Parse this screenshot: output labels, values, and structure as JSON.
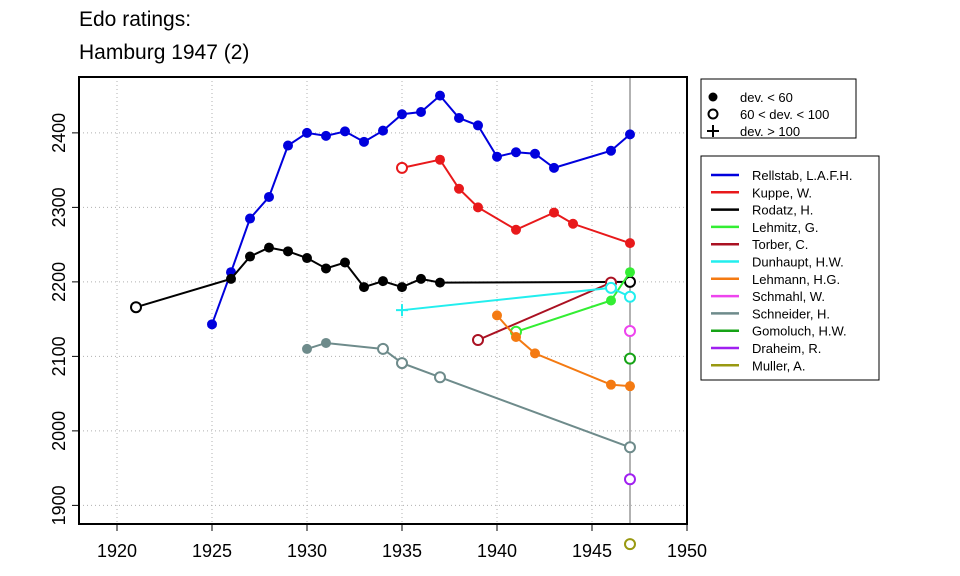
{
  "chart_data": {
    "type": "line",
    "title_lines": [
      "Edo ratings:",
      "Hamburg 1947 (2)"
    ],
    "xlabel": "",
    "ylabel": "",
    "xlim": [
      1918,
      1950
    ],
    "ylim": [
      1875,
      2475
    ],
    "x_ticks": [
      1920,
      1925,
      1930,
      1935,
      1940,
      1945,
      1950
    ],
    "y_ticks": [
      1900,
      2000,
      2100,
      2200,
      2300,
      2400
    ],
    "grid": "dotted",
    "event_year": 1947,
    "legend_markers": {
      "placement": "top-right",
      "entries": [
        {
          "marker": "filled-circle",
          "label": "dev. < 60"
        },
        {
          "marker": "open-circle",
          "label": "60 < dev. < 100"
        },
        {
          "marker": "plus",
          "label": "dev. > 100"
        }
      ]
    },
    "series": [
      {
        "name": "Rellstab, L.A.F.H.",
        "color": "#0000dd",
        "points": [
          {
            "x": 1925,
            "y": 2143,
            "m": "f"
          },
          {
            "x": 1926,
            "y": 2213,
            "m": "f"
          },
          {
            "x": 1927,
            "y": 2285,
            "m": "f"
          },
          {
            "x": 1928,
            "y": 2314,
            "m": "f"
          },
          {
            "x": 1929,
            "y": 2383,
            "m": "f"
          },
          {
            "x": 1930,
            "y": 2400,
            "m": "f"
          },
          {
            "x": 1931,
            "y": 2396,
            "m": "f"
          },
          {
            "x": 1932,
            "y": 2402,
            "m": "f"
          },
          {
            "x": 1933,
            "y": 2388,
            "m": "f"
          },
          {
            "x": 1934,
            "y": 2403,
            "m": "f"
          },
          {
            "x": 1935,
            "y": 2425,
            "m": "f"
          },
          {
            "x": 1936,
            "y": 2428,
            "m": "f"
          },
          {
            "x": 1937,
            "y": 2450,
            "m": "f"
          },
          {
            "x": 1938,
            "y": 2420,
            "m": "f"
          },
          {
            "x": 1939,
            "y": 2410,
            "m": "f"
          },
          {
            "x": 1940,
            "y": 2368,
            "m": "f"
          },
          {
            "x": 1941,
            "y": 2374,
            "m": "f"
          },
          {
            "x": 1942,
            "y": 2372,
            "m": "f"
          },
          {
            "x": 1943,
            "y": 2353,
            "m": "f"
          },
          {
            "x": 1946,
            "y": 2376,
            "m": "f"
          },
          {
            "x": 1947,
            "y": 2398,
            "m": "f"
          }
        ]
      },
      {
        "name": "Kuppe, W.",
        "color": "#e8191b",
        "points": [
          {
            "x": 1935,
            "y": 2353,
            "m": "o"
          },
          {
            "x": 1937,
            "y": 2364,
            "m": "f"
          },
          {
            "x": 1938,
            "y": 2325,
            "m": "f"
          },
          {
            "x": 1939,
            "y": 2300,
            "m": "f"
          },
          {
            "x": 1941,
            "y": 2270,
            "m": "f"
          },
          {
            "x": 1943,
            "y": 2293,
            "m": "f"
          },
          {
            "x": 1944,
            "y": 2278,
            "m": "f"
          },
          {
            "x": 1947,
            "y": 2252,
            "m": "f"
          }
        ]
      },
      {
        "name": "Rodatz, H.",
        "color": "#000000",
        "points": [
          {
            "x": 1921,
            "y": 2166,
            "m": "o"
          },
          {
            "x": 1926,
            "y": 2204,
            "m": "f"
          },
          {
            "x": 1927,
            "y": 2234,
            "m": "f"
          },
          {
            "x": 1928,
            "y": 2246,
            "m": "f"
          },
          {
            "x": 1929,
            "y": 2241,
            "m": "f"
          },
          {
            "x": 1930,
            "y": 2232,
            "m": "f"
          },
          {
            "x": 1931,
            "y": 2218,
            "m": "f"
          },
          {
            "x": 1932,
            "y": 2226,
            "m": "f"
          },
          {
            "x": 1933,
            "y": 2193,
            "m": "f"
          },
          {
            "x": 1934,
            "y": 2201,
            "m": "f"
          },
          {
            "x": 1935,
            "y": 2193,
            "m": "f"
          },
          {
            "x": 1936,
            "y": 2204,
            "m": "f"
          },
          {
            "x": 1937,
            "y": 2199,
            "m": "f"
          },
          {
            "x": 1947,
            "y": 2200,
            "m": "o"
          }
        ]
      },
      {
        "name": "Lehmitz, G.",
        "color": "#33ee33",
        "points": [
          {
            "x": 1941,
            "y": 2133,
            "m": "o"
          },
          {
            "x": 1946,
            "y": 2175,
            "m": "f"
          },
          {
            "x": 1947,
            "y": 2213,
            "m": "f"
          }
        ]
      },
      {
        "name": "Torber, C.",
        "color": "#aa1122",
        "points": [
          {
            "x": 1939,
            "y": 2122,
            "m": "o"
          },
          {
            "x": 1946,
            "y": 2199,
            "m": "o"
          }
        ]
      },
      {
        "name": "Dunhaupt, H.W.",
        "color": "#22eeee",
        "points": [
          {
            "x": 1935,
            "y": 2162,
            "m": "p"
          },
          {
            "x": 1946,
            "y": 2192,
            "m": "o"
          },
          {
            "x": 1947,
            "y": 2180,
            "m": "o"
          }
        ]
      },
      {
        "name": "Lehmann, H.G.",
        "color": "#f47a12",
        "points": [
          {
            "x": 1940,
            "y": 2155,
            "m": "f"
          },
          {
            "x": 1941,
            "y": 2126,
            "m": "f"
          },
          {
            "x": 1942,
            "y": 2104,
            "m": "f"
          },
          {
            "x": 1946,
            "y": 2062,
            "m": "f"
          },
          {
            "x": 1947,
            "y": 2060,
            "m": "f"
          }
        ]
      },
      {
        "name": "Schmahl, W.",
        "color": "#ee44ee",
        "points": [
          {
            "x": 1947,
            "y": 2134,
            "m": "o"
          }
        ]
      },
      {
        "name": "Schneider, H.",
        "color": "#6e8b8b",
        "points": [
          {
            "x": 1930,
            "y": 2110,
            "m": "f"
          },
          {
            "x": 1931,
            "y": 2118,
            "m": "f"
          },
          {
            "x": 1934,
            "y": 2110,
            "m": "o"
          },
          {
            "x": 1935,
            "y": 2091,
            "m": "o"
          },
          {
            "x": 1937,
            "y": 2072,
            "m": "o"
          },
          {
            "x": 1947,
            "y": 1978,
            "m": "o"
          }
        ]
      },
      {
        "name": "Gomoluch, H.W.",
        "color": "#16a316",
        "points": [
          {
            "x": 1947,
            "y": 2097,
            "m": "o"
          }
        ]
      },
      {
        "name": "Draheim, R.",
        "color": "#a020f0",
        "points": [
          {
            "x": 1947,
            "y": 1935,
            "m": "o"
          }
        ]
      },
      {
        "name": "Muller, A.",
        "color": "#999911",
        "points": [
          {
            "x": 1947,
            "y": 1848,
            "m": "o"
          }
        ]
      }
    ]
  }
}
